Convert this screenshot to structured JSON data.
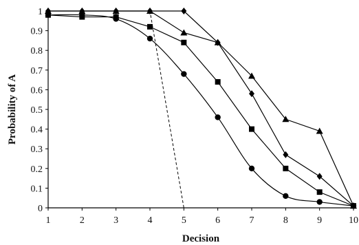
{
  "chart_data": {
    "type": "line",
    "title": "",
    "xlabel": "Decision",
    "ylabel": "Probability of A",
    "xlim": [
      1,
      10
    ],
    "ylim": [
      0,
      1
    ],
    "x_ticks": [
      "1",
      "2",
      "3",
      "4",
      "5",
      "6",
      "7",
      "8",
      "9",
      "10"
    ],
    "y_ticks": [
      "0",
      "0.1",
      "0.2",
      "0.3",
      "0.4",
      "0.5",
      "0.6",
      "0.7",
      "0.8",
      "0.9",
      "1"
    ],
    "grid": false,
    "legend": "none",
    "x": [
      1,
      2,
      3,
      4,
      5,
      6,
      7,
      8,
      9,
      10
    ],
    "series": [
      {
        "marker": "triangle",
        "style": "solid",
        "values": [
          1.0,
          1.0,
          1.0,
          1.0,
          0.89,
          0.84,
          0.67,
          0.45,
          0.39,
          0.01
        ]
      },
      {
        "marker": "diamond",
        "style": "solid",
        "values": [
          1.0,
          1.0,
          1.0,
          1.0,
          1.0,
          0.84,
          0.58,
          0.27,
          0.16,
          0.01
        ]
      },
      {
        "marker": "square",
        "style": "solid",
        "values": [
          0.98,
          0.97,
          0.97,
          0.92,
          0.84,
          0.64,
          0.4,
          0.2,
          0.08,
          0.01
        ]
      },
      {
        "marker": "circle",
        "style": "solid-smooth",
        "values": [
          0.98,
          0.98,
          0.96,
          0.86,
          0.68,
          0.46,
          0.2,
          0.06,
          0.03,
          0.01
        ]
      },
      {
        "marker": "none",
        "style": "dashed",
        "values": [
          1.0,
          1.0,
          1.0,
          1.0,
          0.0,
          0.0,
          0.0,
          0.0,
          0.0,
          0.0
        ]
      }
    ]
  }
}
